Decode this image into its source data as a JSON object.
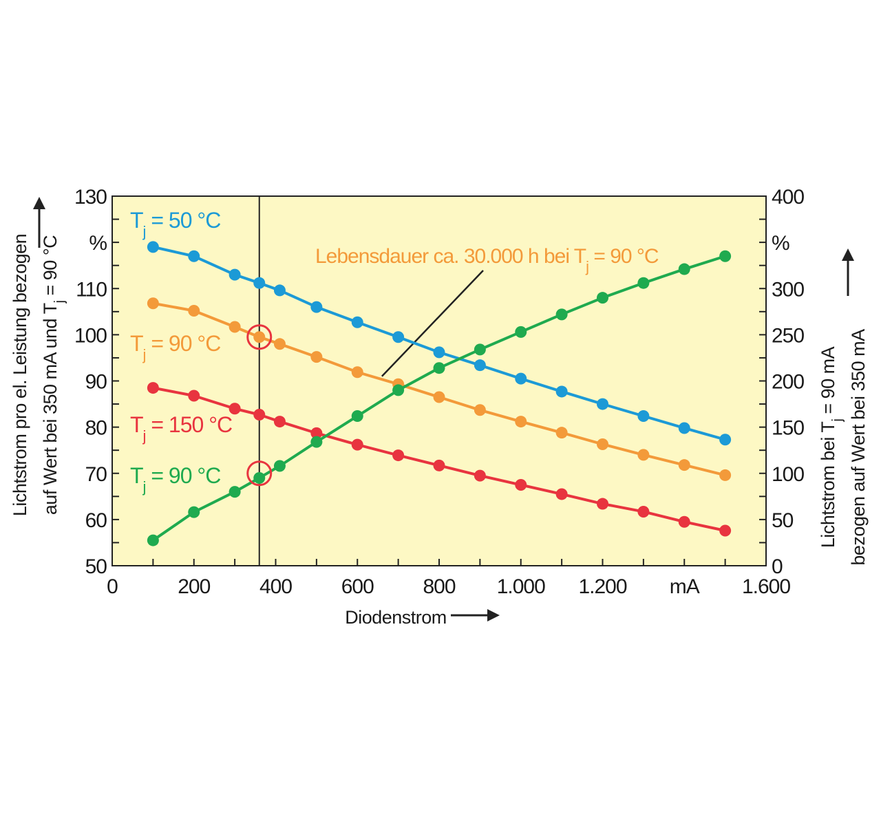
{
  "chart_data": {
    "type": "line",
    "x_axis": {
      "label": "Diodenstrom",
      "range": [
        0,
        1600
      ],
      "ticks": [
        0,
        200,
        400,
        600,
        800,
        1000,
        1200,
        1400,
        1600
      ],
      "tick_labels": [
        "0",
        "200",
        "400",
        "600",
        "800",
        "1.000",
        "1.200",
        "mA",
        "1.600"
      ]
    },
    "y_axis_left": {
      "label_line1": "Lichtstrom pro el. Leistung bezogen",
      "label_line2": "auf Wert bei 350 mA und T",
      "label_line2_sub": "j",
      "label_line2_tail": " = 90 °C",
      "range": [
        50,
        130
      ],
      "ticks": [
        50,
        60,
        70,
        80,
        90,
        100,
        110,
        120,
        130
      ],
      "tick_labels": [
        "50",
        "60",
        "70",
        "80",
        "90",
        "100",
        "110",
        "%",
        "130"
      ]
    },
    "y_axis_right": {
      "label_line1": "Lichtstrom bei T",
      "label_line1_sub": "j",
      "label_line1_tail": " = 90 mA",
      "label_line2": "bezogen auf Wert bei 350 mA",
      "range": [
        0,
        400
      ],
      "ticks": [
        0,
        50,
        100,
        150,
        200,
        250,
        300,
        350,
        400
      ],
      "tick_labels": [
        "0",
        "50",
        "100",
        "150",
        "200",
        "250",
        "300",
        "%",
        "400"
      ]
    },
    "reference_line_x": 360,
    "markers": [
      {
        "x": 360,
        "y": 99.5,
        "axis": "left"
      },
      {
        "x": 360,
        "y": 100,
        "axis": "right"
      }
    ],
    "series": [
      {
        "name": "T",
        "name_sub": "j",
        "name_tail": " = 50 °C",
        "axis": "left",
        "color": "#1c9ad6",
        "x": [
          100,
          200,
          300,
          360,
          410,
          500,
          600,
          700,
          800,
          900,
          1000,
          1100,
          1200,
          1300,
          1400,
          1500
        ],
        "y": [
          119,
          117,
          113,
          111.2,
          109.6,
          106,
          102.7,
          99.5,
          96.2,
          93.4,
          90.5,
          87.7,
          85,
          82.4,
          79.8,
          77.3
        ]
      },
      {
        "name": "T",
        "name_sub": "j",
        "name_tail": " = 90 °C",
        "axis": "left",
        "color": "#f39a3a",
        "x": [
          100,
          200,
          300,
          360,
          410,
          500,
          600,
          700,
          800,
          900,
          1000,
          1100,
          1200,
          1300,
          1400,
          1500
        ],
        "y": [
          106.8,
          105.2,
          101.7,
          99.5,
          98,
          95.2,
          91.9,
          89.3,
          86.5,
          83.7,
          81.2,
          78.8,
          76.3,
          74,
          71.8,
          69.6
        ]
      },
      {
        "name": "T",
        "name_sub": "j",
        "name_tail": " = 150 °C",
        "axis": "left",
        "color": "#e8343f",
        "x": [
          100,
          200,
          300,
          360,
          410,
          500,
          600,
          700,
          800,
          900,
          1000,
          1100,
          1200,
          1300,
          1400,
          1500
        ],
        "y": [
          88.5,
          86.8,
          84,
          82.7,
          81.2,
          78.7,
          76.2,
          73.9,
          71.7,
          69.5,
          67.5,
          65.5,
          63.4,
          61.7,
          59.5,
          57.6
        ]
      },
      {
        "name": "T",
        "name_sub": "j",
        "name_tail": " = 90 °C",
        "axis": "right",
        "color": "#1faa4f",
        "x": [
          100,
          200,
          300,
          360,
          410,
          500,
          600,
          700,
          800,
          900,
          1000,
          1100,
          1200,
          1300,
          1400,
          1500
        ],
        "y": [
          27.5,
          58,
          80,
          95,
          108,
          134,
          162,
          190,
          214,
          234,
          253,
          272,
          290,
          306,
          321,
          335
        ]
      }
    ],
    "annotation": {
      "text": "Lebensdauer ca. 30.000 h bei T",
      "text_sub": "j",
      "text_tail": " = 90 °C",
      "color": "#f39a3a"
    },
    "background_color": "#fdf8c4"
  }
}
